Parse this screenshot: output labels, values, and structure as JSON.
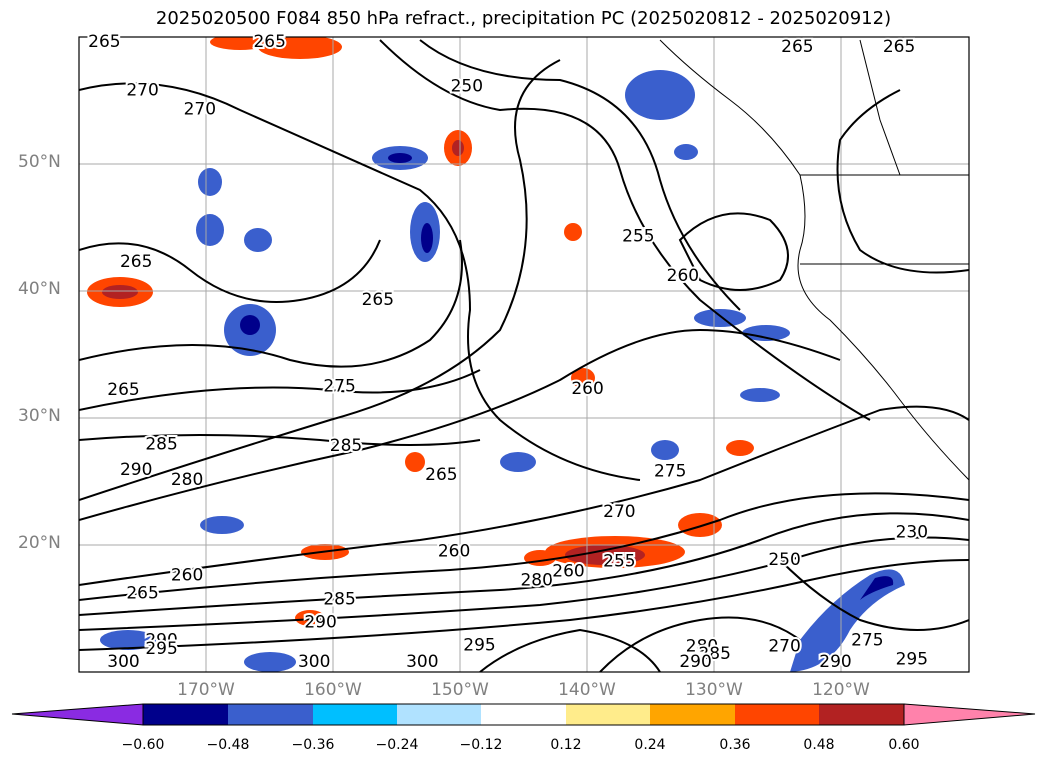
{
  "title": "2025020500 F084 850 hPa refract., precipitation PC (2025020812 - 2025020912)",
  "map": {
    "lon_range": [
      -180,
      -110
    ],
    "lat_range": [
      10,
      60
    ],
    "lat_labels": [
      {
        "text": "50°N",
        "lat": 50
      },
      {
        "text": "40°N",
        "lat": 40
      },
      {
        "text": "30°N",
        "lat": 30
      },
      {
        "text": "20°N",
        "lat": 20
      }
    ],
    "lon_labels": [
      {
        "text": "170°W",
        "lon": -170
      },
      {
        "text": "160°W",
        "lon": -160
      },
      {
        "text": "150°W",
        "lon": -150
      },
      {
        "text": "140°W",
        "lon": -140
      },
      {
        "text": "130°W",
        "lon": -130
      },
      {
        "text": "120°W",
        "lon": -120
      }
    ],
    "gridlines": true,
    "contour_labels": [
      {
        "text": "265",
        "lon": -178,
        "lat": 59.6
      },
      {
        "text": "270",
        "lon": -175,
        "lat": 55.8
      },
      {
        "text": "270",
        "lon": -170.5,
        "lat": 54.3
      },
      {
        "text": "250",
        "lon": -149.5,
        "lat": 56.1
      },
      {
        "text": "265",
        "lon": -165,
        "lat": 59.6
      },
      {
        "text": "265",
        "lon": -123.5,
        "lat": 59.2
      },
      {
        "text": "265",
        "lon": -115.5,
        "lat": 59.2
      },
      {
        "text": "265",
        "lon": -175.5,
        "lat": 42.3
      },
      {
        "text": "265",
        "lon": -156.5,
        "lat": 39.3
      },
      {
        "text": "255",
        "lon": -136,
        "lat": 44.3
      },
      {
        "text": "260",
        "lon": -132.5,
        "lat": 41.2
      },
      {
        "text": "265",
        "lon": -176.5,
        "lat": 32.2
      },
      {
        "text": "275",
        "lon": -159.5,
        "lat": 32.5
      },
      {
        "text": "260",
        "lon": -140,
        "lat": 32.3
      },
      {
        "text": "285",
        "lon": -173.5,
        "lat": 27.9
      },
      {
        "text": "285",
        "lon": -159,
        "lat": 27.8
      },
      {
        "text": "290",
        "lon": -175.5,
        "lat": 25.9
      },
      {
        "text": "280",
        "lon": -171.5,
        "lat": 25.1
      },
      {
        "text": "265",
        "lon": -151.5,
        "lat": 25.5
      },
      {
        "text": "275",
        "lon": -133.5,
        "lat": 25.8
      },
      {
        "text": "270",
        "lon": -137.5,
        "lat": 22.6
      },
      {
        "text": "230",
        "lon": -114.5,
        "lat": 21
      },
      {
        "text": "260",
        "lon": -150.5,
        "lat": 19.5
      },
      {
        "text": "260",
        "lon": -171.5,
        "lat": 17.6
      },
      {
        "text": "265",
        "lon": -175,
        "lat": 16.2
      },
      {
        "text": "285",
        "lon": -159.5,
        "lat": 15.7
      },
      {
        "text": "290",
        "lon": -161,
        "lat": 13.9
      },
      {
        "text": "290",
        "lon": -173.5,
        "lat": 12.5
      },
      {
        "text": "295",
        "lon": -173.5,
        "lat": 11.8
      },
      {
        "text": "300",
        "lon": -176.5,
        "lat": 10.8
      },
      {
        "text": "300",
        "lon": -161.5,
        "lat": 10.8
      },
      {
        "text": "300",
        "lon": -153,
        "lat": 10.8
      },
      {
        "text": "295",
        "lon": -148.5,
        "lat": 12.1
      },
      {
        "text": "280",
        "lon": -144,
        "lat": 17.2
      },
      {
        "text": "260",
        "lon": -141.5,
        "lat": 17.9
      },
      {
        "text": "255",
        "lon": -137.5,
        "lat": 18.7
      },
      {
        "text": "250",
        "lon": -124.5,
        "lat": 18.8
      },
      {
        "text": "280",
        "lon": -131,
        "lat": 12
      },
      {
        "text": "285",
        "lon": -130,
        "lat": 11.4
      },
      {
        "text": "290",
        "lon": -131.5,
        "lat": 10.8
      },
      {
        "text": "270",
        "lon": -124.5,
        "lat": 12
      },
      {
        "text": "275",
        "lon": -118,
        "lat": 12.5
      },
      {
        "text": "290",
        "lon": -120.5,
        "lat": 10.8
      },
      {
        "text": "295",
        "lon": -114.5,
        "lat": 11
      }
    ]
  },
  "colorbar": {
    "ticks": [
      "−0.60",
      "−0.48",
      "−0.36",
      "−0.24",
      "−0.12",
      "0.12",
      "0.24",
      "0.36",
      "0.48",
      "0.60"
    ],
    "colors": [
      "#8a2be2",
      "#00008b",
      "#3a5fcd",
      "#00bfff",
      "#b0e2ff",
      "#ffffff",
      "#ffec8b",
      "#ffa500",
      "#ff4500",
      "#b22222",
      "#ff82ab"
    ]
  }
}
